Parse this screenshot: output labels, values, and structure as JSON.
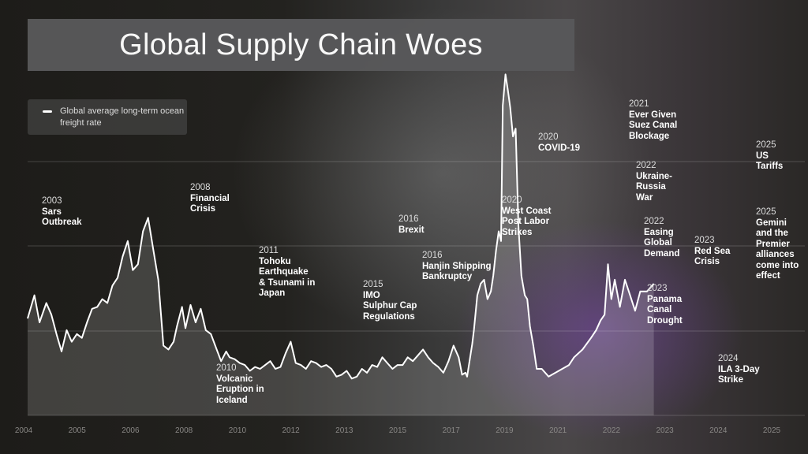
{
  "title": "Global Supply Chain Woes",
  "legend": {
    "label": "Global average long-term ocean freight rate",
    "color": "#ffffff"
  },
  "annotations": [
    {
      "year": "2003",
      "text": "Sars\nOutbreak"
    },
    {
      "year": "2008",
      "text": "Financial\nCrisis"
    },
    {
      "year": "2010",
      "text": "Volcanic\nEruption in\nIceland"
    },
    {
      "year": "2011",
      "text": "Tohoku\nEarthquake\n& Tsunami in\nJapan"
    },
    {
      "year": "2015",
      "text": "IMO\nSulphur Cap\nRegulations"
    },
    {
      "year": "2016",
      "text": "Brexit"
    },
    {
      "year": "2016",
      "text": "Hanjin Shipping\nBankruptcy"
    },
    {
      "year": "2020",
      "text": "COVID-19"
    },
    {
      "year": "2020",
      "text": "West Coast\nPost Labor\nStrikes"
    },
    {
      "year": "2021",
      "text": "Ever Given\nSuez Canal\nBlockage"
    },
    {
      "year": "2022",
      "text": "Ukraine-\nRussia\nWar"
    },
    {
      "year": "2022",
      "text": "Easing\nGlobal\nDemand"
    },
    {
      "year": "2023",
      "text": "Panama\nCanal\nDrought"
    },
    {
      "year": "2023",
      "text": "Red Sea\nCrisis"
    },
    {
      "year": "2024",
      "text": "ILA 3-Day\nStrike"
    },
    {
      "year": "2025",
      "text": "US\nTariffs"
    },
    {
      "year": "2025",
      "text": "Gemini\nand the\nPremier\nalliances\ncome into\neffect"
    }
  ],
  "chart_data": {
    "type": "line",
    "x_ticks": [
      "2004",
      "2005",
      "2006",
      "2008",
      "2010",
      "2012",
      "2013",
      "2015",
      "2017",
      "2019",
      "2021",
      "2022",
      "2023",
      "2024",
      "2025"
    ],
    "series": [
      {
        "name": "Global average long-term ocean freight rate",
        "points": [
          [
            2003.0,
            50
          ],
          [
            2003.2,
            62
          ],
          [
            2003.35,
            48
          ],
          [
            2003.55,
            58
          ],
          [
            2003.7,
            52
          ],
          [
            2003.85,
            42
          ],
          [
            2004.0,
            33
          ],
          [
            2004.15,
            44
          ],
          [
            2004.3,
            38
          ],
          [
            2004.45,
            42
          ],
          [
            2004.6,
            40
          ],
          [
            2004.75,
            48
          ],
          [
            2004.9,
            55
          ],
          [
            2005.05,
            56
          ],
          [
            2005.2,
            60
          ],
          [
            2005.35,
            58
          ],
          [
            2005.5,
            67
          ],
          [
            2005.65,
            71
          ],
          [
            2005.8,
            82
          ],
          [
            2005.95,
            90
          ],
          [
            2006.1,
            75
          ],
          [
            2006.25,
            78
          ],
          [
            2006.4,
            95
          ],
          [
            2006.55,
            102
          ],
          [
            2006.7,
            86
          ],
          [
            2006.85,
            70
          ],
          [
            2007.0,
            36
          ],
          [
            2007.15,
            34
          ],
          [
            2007.3,
            38
          ],
          [
            2007.4,
            46
          ],
          [
            2007.55,
            56
          ],
          [
            2007.65,
            45
          ],
          [
            2007.8,
            57
          ],
          [
            2007.95,
            48
          ],
          [
            2008.1,
            55
          ],
          [
            2008.25,
            44
          ],
          [
            2008.4,
            42
          ],
          [
            2008.55,
            35
          ],
          [
            2008.7,
            28
          ],
          [
            2008.85,
            33
          ],
          [
            2008.95,
            30
          ],
          [
            2009.1,
            29
          ],
          [
            2009.25,
            27
          ],
          [
            2009.4,
            26
          ],
          [
            2009.55,
            23
          ],
          [
            2009.7,
            25
          ],
          [
            2009.85,
            24
          ],
          [
            2010.0,
            26
          ],
          [
            2010.15,
            28
          ],
          [
            2010.3,
            24
          ],
          [
            2010.45,
            25
          ],
          [
            2010.6,
            32
          ],
          [
            2010.75,
            38
          ],
          [
            2010.9,
            27
          ],
          [
            2011.05,
            26
          ],
          [
            2011.2,
            24
          ],
          [
            2011.35,
            28
          ],
          [
            2011.5,
            27
          ],
          [
            2011.65,
            25
          ],
          [
            2011.8,
            26
          ],
          [
            2011.95,
            24
          ],
          [
            2012.1,
            20
          ],
          [
            2012.25,
            21
          ],
          [
            2012.4,
            23
          ],
          [
            2012.55,
            19
          ],
          [
            2012.7,
            20
          ],
          [
            2012.85,
            24
          ],
          [
            2013.0,
            22
          ],
          [
            2013.15,
            26
          ],
          [
            2013.3,
            25
          ],
          [
            2013.45,
            30
          ],
          [
            2013.6,
            27
          ],
          [
            2013.75,
            24
          ],
          [
            2013.9,
            26
          ],
          [
            2014.05,
            26
          ],
          [
            2014.2,
            30
          ],
          [
            2014.35,
            28
          ],
          [
            2014.5,
            31
          ],
          [
            2014.65,
            34
          ],
          [
            2014.8,
            30
          ],
          [
            2014.95,
            27
          ],
          [
            2015.1,
            25
          ],
          [
            2015.25,
            22
          ],
          [
            2015.4,
            28
          ],
          [
            2015.55,
            36
          ],
          [
            2015.7,
            30
          ],
          [
            2015.8,
            21
          ],
          [
            2015.9,
            22
          ],
          [
            2015.95,
            20
          ],
          [
            2016.1,
            37
          ],
          [
            2016.15,
            44
          ],
          [
            2016.25,
            62
          ],
          [
            2016.35,
            68
          ],
          [
            2016.45,
            70
          ],
          [
            2016.55,
            60
          ],
          [
            2016.65,
            64
          ],
          [
            2016.72,
            72
          ],
          [
            2016.8,
            85
          ],
          [
            2016.88,
            95
          ],
          [
            2016.95,
            90
          ],
          [
            2017.0,
            160
          ],
          [
            2017.08,
            176
          ],
          [
            2017.15,
            168
          ],
          [
            2017.22,
            159
          ],
          [
            2017.3,
            144
          ],
          [
            2017.38,
            148
          ],
          [
            2017.46,
            98
          ],
          [
            2017.55,
            72
          ],
          [
            2017.65,
            62
          ],
          [
            2017.72,
            60
          ],
          [
            2017.8,
            46
          ],
          [
            2017.9,
            36
          ],
          [
            2018.0,
            24
          ],
          [
            2018.15,
            24
          ],
          [
            2018.35,
            20
          ],
          [
            2018.55,
            22
          ],
          [
            2018.75,
            24
          ],
          [
            2018.95,
            26
          ],
          [
            2019.1,
            30
          ],
          [
            2019.35,
            34
          ],
          [
            2019.6,
            40
          ],
          [
            2019.75,
            44
          ],
          [
            2019.88,
            49
          ],
          [
            2020.0,
            52
          ],
          [
            2020.1,
            78
          ],
          [
            2020.2,
            60
          ],
          [
            2020.3,
            70
          ],
          [
            2020.45,
            56
          ],
          [
            2020.6,
            70
          ],
          [
            2020.75,
            62
          ],
          [
            2020.9,
            54
          ],
          [
            2021.05,
            64
          ],
          [
            2021.25,
            64
          ],
          [
            2021.45,
            68
          ]
        ]
      }
    ],
    "ylim": [
      0,
      190
    ],
    "grid": true,
    "legend_position": "top-left"
  }
}
